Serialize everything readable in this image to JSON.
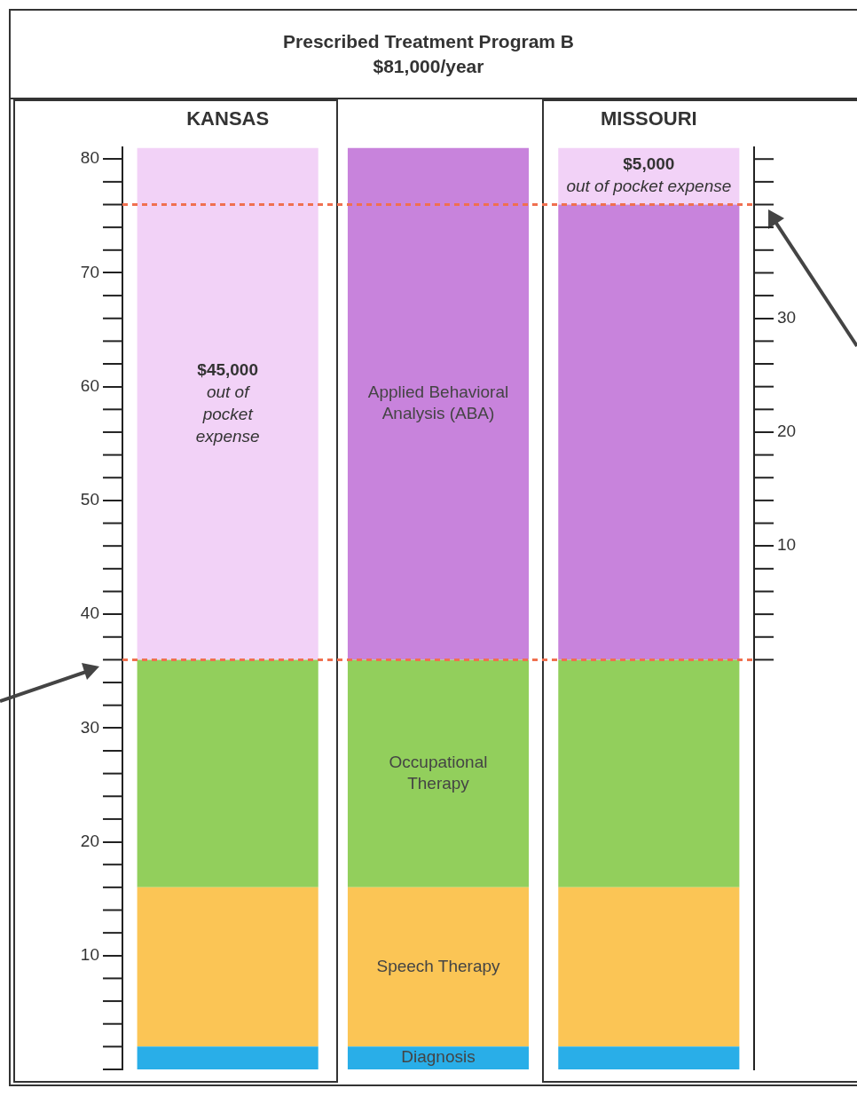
{
  "chart_data": {
    "type": "bar",
    "title": "Prescribed Treatment Program B",
    "subtitle": "$81,000/year",
    "categories": [
      "KANSAS",
      null,
      "MISSOURI"
    ],
    "stacked": true,
    "series": [
      {
        "name": "Diagnosis",
        "color": "#29aee8",
        "values": [
          2,
          2,
          2
        ]
      },
      {
        "name": "Speech Therapy",
        "color": "#fbc555",
        "values": [
          14,
          14,
          14
        ]
      },
      {
        "name": "Occupational Therapy",
        "color": "#92cf5c",
        "values": [
          20,
          20,
          20
        ]
      },
      {
        "name": "Applied Behavioral Analysis (ABA)",
        "color": "#c883dc",
        "values": [
          null,
          45,
          40
        ]
      },
      {
        "color": "#f2d2f7",
        "values": [
          45,
          null,
          5
        ]
      }
    ],
    "annotations": [
      "$45,000\nout of\npocket\nexpense",
      "$5,000\nout of pocket expense"
    ],
    "ylim": [
      0,
      81
    ],
    "yticks": [
      10,
      20,
      30,
      40,
      50,
      60,
      70,
      80
    ],
    "y2lim": [
      -36,
      45
    ],
    "y2ticks": [
      10,
      20,
      30
    ],
    "ref_lines": [
      {
        "axis": "y",
        "value": 36,
        "color": "#f07050",
        "line_style": "dashed"
      },
      {
        "axis": "y",
        "value": 76,
        "color": "#f07050",
        "line_style": "dashed"
      }
    ]
  }
}
